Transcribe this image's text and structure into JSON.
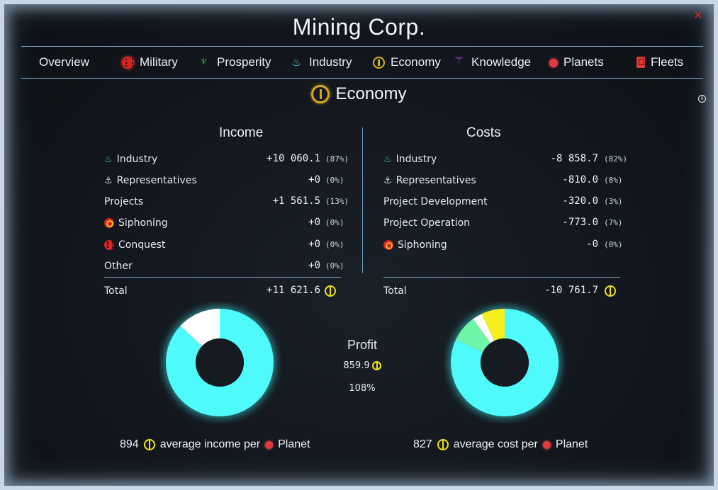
{
  "window": {
    "title": "Mining Corp.",
    "close_label": "✕"
  },
  "tabs": [
    {
      "label": "Overview",
      "icon": "none"
    },
    {
      "label": "Military",
      "icon": "military-icon"
    },
    {
      "label": "Prosperity",
      "icon": "prosperity-icon"
    },
    {
      "label": "Industry",
      "icon": "industry-icon"
    },
    {
      "label": "Economy",
      "icon": "economy-icon"
    },
    {
      "label": "Knowledge",
      "icon": "knowledge-icon"
    },
    {
      "label": "Planets",
      "icon": "planet-icon"
    },
    {
      "label": "Fleets",
      "icon": "fleet-icon"
    }
  ],
  "section": {
    "title": "Economy",
    "info": "i"
  },
  "income": {
    "title": "Income",
    "rows": [
      {
        "label": "Industry",
        "value": "+10 060.1",
        "pct": "(87%)"
      },
      {
        "label": "Representatives",
        "value": "+0",
        "pct": "(0%)"
      },
      {
        "label": "Projects",
        "value": "+1 561.5",
        "pct": "(13%)"
      },
      {
        "label": "Siphoning",
        "value": "+0",
        "pct": "(0%)"
      },
      {
        "label": "Conquest",
        "value": "+0",
        "pct": "(0%)"
      },
      {
        "label": "Other",
        "value": "+0",
        "pct": "(0%)"
      }
    ],
    "total_label": "Total",
    "total_value": "+11 621.6"
  },
  "costs": {
    "title": "Costs",
    "rows": [
      {
        "label": "Industry",
        "value": "-8 858.7",
        "pct": "(82%)"
      },
      {
        "label": "Representatives",
        "value": "-810.0",
        "pct": "(8%)"
      },
      {
        "label": "Project Development",
        "value": "-320.0",
        "pct": "(3%)"
      },
      {
        "label": "Project Operation",
        "value": "-773.0",
        "pct": "(7%)"
      },
      {
        "label": "Siphoning",
        "value": "-0",
        "pct": "(0%)"
      }
    ],
    "total_label": "Total",
    "total_value": "-10 761.7"
  },
  "profit": {
    "label": "Profit",
    "value": "859.9",
    "percent": "108%"
  },
  "averages": {
    "income_value": "894",
    "income_text": "average income per",
    "cost_value": "827",
    "cost_text": "average cost per",
    "planet_label": "Planet"
  },
  "colors": {
    "cyan": "#4ffafa",
    "white": "#ffffff",
    "green": "#60f0a0",
    "yellow": "#f5f020"
  },
  "chart_data": [
    {
      "type": "pie",
      "name": "income",
      "values": [
        87,
        13
      ],
      "colors": [
        "#4ffafa",
        "#ffffff"
      ]
    },
    {
      "type": "pie",
      "name": "costs",
      "values": [
        82,
        8,
        3,
        7
      ],
      "colors": [
        "#4ffafa",
        "#6ff5a8",
        "#ffffff",
        "#f5f020"
      ]
    }
  ]
}
